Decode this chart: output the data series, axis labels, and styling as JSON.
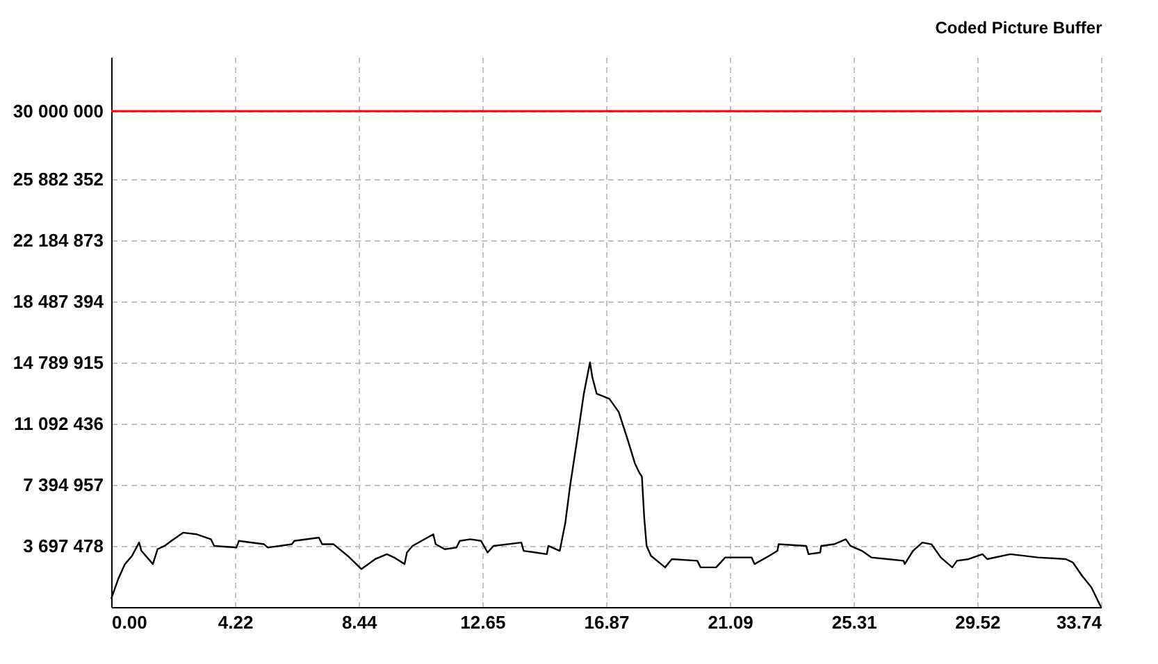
{
  "chart_data": {
    "type": "line",
    "title": "Coded Picture Buffer",
    "x": [
      0,
      0.24,
      0.47,
      0.71,
      0.95,
      1.03,
      1.42,
      1.58,
      1.82,
      2.05,
      2.45,
      2.92,
      3.4,
      3.51,
      4.27,
      4.35,
      5.21,
      5.34,
      6.16,
      6.24,
      7.08,
      7.19,
      7.58,
      8.06,
      8.53,
      9.0,
      9.4,
      9.64,
      10.0,
      10.08,
      10.27,
      10.98,
      11.06,
      11.37,
      11.77,
      11.88,
      12.24,
      12.61,
      12.83,
      13.03,
      13.98,
      14.06,
      14.85,
      14.9,
      15.29,
      15.48,
      15.64,
      15.88,
      16.11,
      16.32,
      16.4,
      16.55,
      16.98,
      17.3,
      17.61,
      17.85,
      18.01,
      18.09,
      18.17,
      18.25,
      18.4,
      18.88,
      19.11,
      19.98,
      20.09,
      20.62,
      20.93,
      21.83,
      21.93,
      22.43,
      22.71,
      22.75,
      23.69,
      23.77,
      24.17,
      24.2,
      24.64,
      25.04,
      25.2,
      25.59,
      25.91,
      27.01,
      27.05,
      27.33,
      27.65,
      27.96,
      28.28,
      28.67,
      28.83,
      29.23,
      29.7,
      29.86,
      30.65,
      31.6,
      32.54,
      32.78,
      33.09,
      33.41,
      33.74
    ],
    "series": [
      {
        "color": "#000000",
        "values": [
          500000,
          1700000,
          2600000,
          3100000,
          3900000,
          3400000,
          2600000,
          3500000,
          3700000,
          4000000,
          4500000,
          4400000,
          4100000,
          3700000,
          3600000,
          4000000,
          3800000,
          3600000,
          3800000,
          4000000,
          4200000,
          3800000,
          3800000,
          3100000,
          2300000,
          2900000,
          3200000,
          3000000,
          2600000,
          3300000,
          3700000,
          4400000,
          3800000,
          3500000,
          3600000,
          4000000,
          4100000,
          4000000,
          3300000,
          3700000,
          3900000,
          3400000,
          3200000,
          3700000,
          3400000,
          5100000,
          7300000,
          10100000,
          12900000,
          14800000,
          13900000,
          12900000,
          12600000,
          11800000,
          10100000,
          8700000,
          8100000,
          7900000,
          5400000,
          3700000,
          3100000,
          2400000,
          2900000,
          2800000,
          2400000,
          2400000,
          3000000,
          3000000,
          2600000,
          3100000,
          3400000,
          3800000,
          3700000,
          3200000,
          3300000,
          3700000,
          3800000,
          4100000,
          3700000,
          3400000,
          3000000,
          2800000,
          2600000,
          3400000,
          3900000,
          3800000,
          3000000,
          2400000,
          2800000,
          2900000,
          3200000,
          2900000,
          3200000,
          3000000,
          2900000,
          2700000,
          1900000,
          1200000,
          0
        ]
      }
    ],
    "xlim": [
      0,
      33.74
    ],
    "xticks": [
      {
        "value": 0,
        "label": "0.00"
      },
      4.22,
      8.44,
      12.65,
      16.87,
      21.09,
      25.31,
      29.52,
      33.74
    ],
    "ylim": [
      0,
      33277300
    ],
    "yticks": [
      {
        "value": 3697478,
        "label": "3 697 478"
      },
      {
        "value": 7394957,
        "label": "7 394 957"
      },
      {
        "value": 11092436,
        "label": "11 092 436"
      },
      {
        "value": 14789915,
        "label": "14 789 915"
      },
      {
        "value": 18487394,
        "label": "18 487 394"
      },
      {
        "value": 22184873,
        "label": "22 184 873"
      },
      {
        "value": 25882352,
        "label": "25 882 352"
      },
      {
        "value": 30000000,
        "label": "30 000 000"
      }
    ],
    "ref_lines": [
      {
        "axis": "y",
        "value": 30000000,
        "color": "#ff0000",
        "line_style": "solid"
      }
    ],
    "grid": true,
    "line_style": "solid",
    "marker": "none"
  }
}
